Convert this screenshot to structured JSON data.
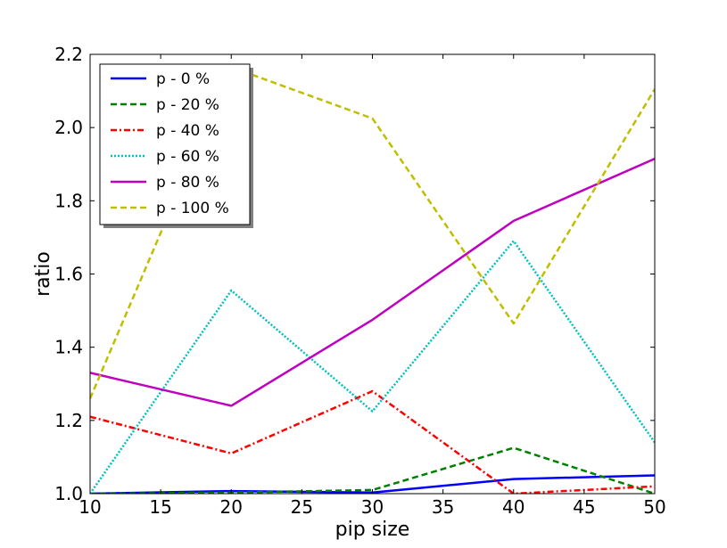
{
  "chart_data": {
    "type": "line",
    "title": "",
    "xlabel": "pip size",
    "ylabel": "ratio",
    "x": [
      10,
      20,
      30,
      40,
      50
    ],
    "xlim": [
      10,
      50
    ],
    "ylim": [
      1.0,
      2.2
    ],
    "xticks": [
      10,
      15,
      20,
      25,
      30,
      35,
      40,
      45,
      50
    ],
    "yticks": [
      1.0,
      1.2,
      1.4,
      1.6,
      1.8,
      2.0,
      2.2
    ],
    "grid": false,
    "legend_position": "top-left",
    "series": [
      {
        "name": "p - 0 %",
        "values": [
          1.0,
          1.007,
          1.003,
          1.04,
          1.05
        ],
        "color": "#0000ff",
        "style": "solid"
      },
      {
        "name": "p - 20 %",
        "values": [
          1.0,
          1.003,
          1.01,
          1.125,
          1.0
        ],
        "color": "#008000",
        "style": "dashed"
      },
      {
        "name": "p - 40 %",
        "values": [
          1.21,
          1.11,
          1.28,
          1.0,
          1.02
        ],
        "color": "#ff0000",
        "style": "dashdot"
      },
      {
        "name": "p - 60 %",
        "values": [
          1.0,
          1.555,
          1.225,
          1.69,
          1.14
        ],
        "color": "#00bfbf",
        "style": "dotted"
      },
      {
        "name": "p - 80 %",
        "values": [
          1.33,
          1.24,
          1.475,
          1.745,
          1.915
        ],
        "color": "#bf00bf",
        "style": "solid"
      },
      {
        "name": "p - 100 %",
        "values": [
          1.26,
          2.165,
          2.025,
          1.465,
          2.105
        ],
        "color": "#bfbf00",
        "style": "dashed"
      }
    ]
  }
}
